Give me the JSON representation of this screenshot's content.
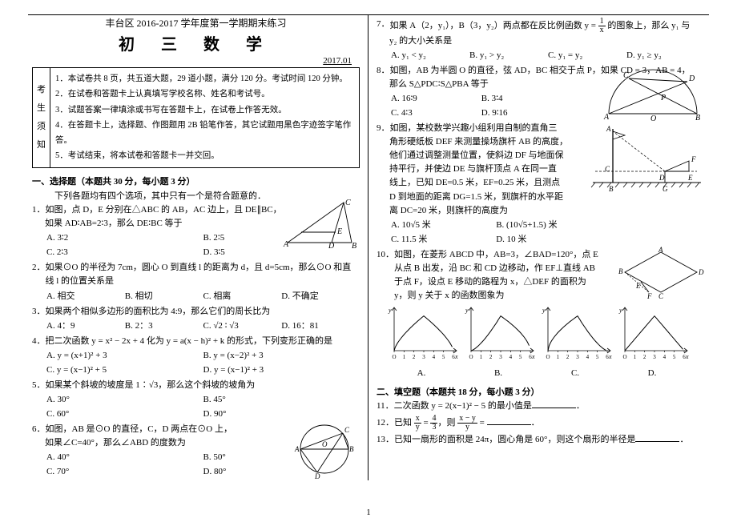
{
  "header": {
    "subtitle": "丰台区 2016-2017 学年度第一学期期末练习",
    "title": "初 三 数 学",
    "date": "2017.01"
  },
  "notice": {
    "side": [
      "考",
      "生",
      "须",
      "知"
    ],
    "items": [
      "1．本试卷共 8 页，共五道大题，29 道小题，满分 120 分。考试时间 120 分钟。",
      "2．在试卷和答题卡上认真填写学校名称、姓名和考试号。",
      "3．试题答案一律填涂或书写在答题卡上，在试卷上作答无效。",
      "4．在答题卡上，选择题、作图题用 2B 铅笔作答，其它试题用黑色字迹签字笔作答。",
      "5．考试结束，将本试卷和答题卡一并交回。"
    ]
  },
  "section1": {
    "head": "一、选择题（本题共 30 分，每小题 3 分）",
    "sub": "下列各题均有四个选项，其中只有一个是符合题意的．"
  },
  "section2": {
    "head": "二、填空题（本题共 18 分，每小题 3 分）"
  },
  "q1": {
    "num": "1．",
    "line1": "如图，点 D，E 分别在△ABC 的 AB，AC 边上，且 DE∥BC，",
    "line2": "如果 AD∶AB=2∶3，那么 DE∶BC 等于",
    "A": "A. 3∶2",
    "B": "B. 2∶5",
    "C": "C. 2∶3",
    "D": "D. 3∶5"
  },
  "q2": {
    "num": "2．",
    "text": "如果⊙O 的半径为 7cm，圆心 O 到直线 l 的距离为 d，且 d=5cm，那么⊙O 和直线 l 的位置关系是",
    "A": "A. 相交",
    "B": "B. 相切",
    "C": "C. 相离",
    "D": "D. 不确定"
  },
  "q3": {
    "num": "3．",
    "text": "如果两个相似多边形的面积比为 4:9，那么它们的周长比为",
    "A": "A. 4：9",
    "B": "B. 2：3",
    "C": "C. √2 ∶ √3",
    "D": "D. 16：81"
  },
  "q4": {
    "num": "4．",
    "text": "把二次函数 y = x² − 2x + 4 化为 y = a(x − h)² + k 的形式，下列变形正确的是",
    "A": "A. y = (x+1)² + 3",
    "B": "B. y = (x−2)² + 3",
    "C": "C. y = (x−1)² + 5",
    "D": "D. y = (x−1)² + 3"
  },
  "q5": {
    "num": "5．",
    "text": "如果某个斜坡的坡度是 1∶√3，那么这个斜坡的坡角为",
    "A": "A. 30°",
    "B": "B. 45°",
    "C": "C. 60°",
    "D": "D. 90°"
  },
  "q6": {
    "num": "6．",
    "line1": "如图，AB 是⊙O 的直径，C，D 两点在⊙O 上，",
    "line2": "如果∠C=40°，那么∠ABD 的度数为",
    "A": "A. 40°",
    "B": "B. 50°",
    "C": "C. 70°",
    "D": "D. 80°"
  },
  "q7": {
    "num": "7．",
    "text_a": "如果 A（2，y₁），B（3，y₂）两点都在反比例函数 y = ",
    "text_b": " 的图象上，那么 y₁ 与",
    "text_c": "y₂ 的大小关系是",
    "A": "A. y₁ < y₂",
    "B": "B. y₁ > y₂",
    "C": "C. y₁ = y₂",
    "D": "D. y₁ ≥ y₂"
  },
  "q8": {
    "num": "8．",
    "line1": "如图，AB 为半圆 O 的直径，弦 AD，BC 相交于点 P，如果 CD = 3，AB = 4，",
    "line2": "那么 S△PDC∶S△PBA 等于",
    "A": "A. 16∶9",
    "B": "B. 3∶4",
    "C": "C. 4∶3",
    "D": "D. 9∶16"
  },
  "q9": {
    "num": "9．",
    "l1": "如图，某校数学兴趣小组利用自制的直角三",
    "l2": "角形硬纸板 DEF 来测量操场旗杆 AB 的高度，",
    "l3": "他们通过调整测量位置，使斜边 DF 与地面保",
    "l4": "持平行，并使边 DE 与旗杆顶点 A 在同一直",
    "l5": "线上，已知 DE=0.5 米，EF=0.25 米，且测点",
    "l6": "D 到地面的距离 DG=1.5 米，到旗杆的水平距",
    "l7": "离 DC=20 米，则旗杆的高度为",
    "A": "A. 10√5 米",
    "B": "B. (10√5+1.5) 米",
    "C": "C. 11.5 米",
    "D": "D. 10 米"
  },
  "q10": {
    "num": "10．",
    "l1": "如图，在菱形 ABCD 中，AB=3，∠BAD=120°，点 E",
    "l2": "从点 B 出发，沿 BC 和 CD 边移动，作 EF⊥直线 AB",
    "l3": "于点 F，设点 E 移动的路程为 x，△DEF 的面积为",
    "l4": "y，则 y 关于 x 的函数图象为",
    "A": "A.",
    "B": "B.",
    "C": "C.",
    "D": "D."
  },
  "q11": {
    "num": "11．",
    "text": "二次函数 y = 2(x−1)² − 5 的最小值是"
  },
  "q12": {
    "num": "12．",
    "text_a": "已知 ",
    "text_b": "，则 ",
    "text_c": " = "
  },
  "q13": {
    "num": "13．",
    "text": "已知一扇形的面积是 24π，圆心角是 60°，则这个扇形的半径是"
  },
  "charts": {
    "axis_color": "#000",
    "curve_color": "#000",
    "width": 92,
    "height": 70,
    "xmax": 6,
    "ymax": 3,
    "ticks": [
      "O",
      "1",
      "2",
      "3",
      "4",
      "5",
      "6"
    ]
  },
  "page_number": "1"
}
